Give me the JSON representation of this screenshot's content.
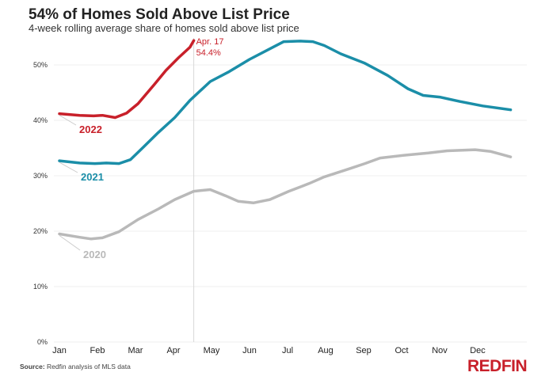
{
  "chart_data": {
    "type": "line",
    "title": "54% of Homes Sold Above List Price",
    "subtitle": "4-week rolling average share of homes sold above list price",
    "xlabel": "",
    "ylabel": "",
    "x_tick_labels": [
      "Jan",
      "Feb",
      "Mar",
      "Apr",
      "May",
      "Jun",
      "Jul",
      "Aug",
      "Sep",
      "Oct",
      "Nov",
      "Dec"
    ],
    "y_tick_labels": [
      "0%",
      "10%",
      "20%",
      "30%",
      "40%",
      "50%"
    ],
    "ylim": [
      0,
      55
    ],
    "grid": true,
    "series": [
      {
        "name": "2020",
        "color": "#b9b9b9",
        "x": [
          "01-01",
          "01-17",
          "01-26",
          "02-05",
          "02-18",
          "03-03",
          "03-19",
          "04-02",
          "04-17",
          "04-30",
          "05-12",
          "05-22",
          "06-04",
          "06-17",
          "07-02",
          "07-18",
          "07-30",
          "08-19",
          "09-02",
          "09-14",
          "10-03",
          "10-22",
          "11-07",
          "11-29",
          "12-11",
          "12-27"
        ],
        "values": [
          19.5,
          18.9,
          18.6,
          18.8,
          19.9,
          22.1,
          24.0,
          25.7,
          27.2,
          27.5,
          26.4,
          25.4,
          25.1,
          25.7,
          27.2,
          28.6,
          29.8,
          31.2,
          32.2,
          33.2,
          33.7,
          34.1,
          34.5,
          34.7,
          34.4,
          33.4
        ]
      },
      {
        "name": "2021",
        "color": "#1b8ea8",
        "x": [
          "01-01",
          "01-17",
          "01-29",
          "02-08",
          "02-18",
          "02-27",
          "03-07",
          "03-19",
          "04-02",
          "04-14",
          "04-30",
          "05-15",
          "06-01",
          "06-17",
          "06-28",
          "07-11",
          "07-21",
          "07-30",
          "08-13",
          "09-02",
          "09-20",
          "10-06",
          "10-18",
          "11-01",
          "11-17",
          "12-05",
          "12-27"
        ],
        "values": [
          32.7,
          32.3,
          32.2,
          32.3,
          32.2,
          32.9,
          35.1,
          37.8,
          40.5,
          43.6,
          47.0,
          48.8,
          51.0,
          52.9,
          54.2,
          54.3,
          54.2,
          53.5,
          52.0,
          50.3,
          48.1,
          45.7,
          44.5,
          44.2,
          43.4,
          42.6,
          41.9
        ]
      },
      {
        "name": "2022",
        "color": "#c8202a",
        "x": [
          "01-01",
          "01-17",
          "01-28",
          "02-05",
          "02-15",
          "02-24",
          "03-03",
          "03-16",
          "03-25",
          "04-05",
          "04-14",
          "04-17"
        ],
        "values": [
          41.2,
          40.9,
          40.8,
          40.9,
          40.5,
          41.3,
          43.0,
          46.5,
          49.0,
          51.3,
          53.2,
          54.4
        ]
      }
    ],
    "annotation": {
      "date": "Apr. 17",
      "value": "54.4%"
    }
  },
  "footer": {
    "source_label": "Source:",
    "source_text": " Redfin analysis of MLS data",
    "logo": "REDFIN"
  }
}
